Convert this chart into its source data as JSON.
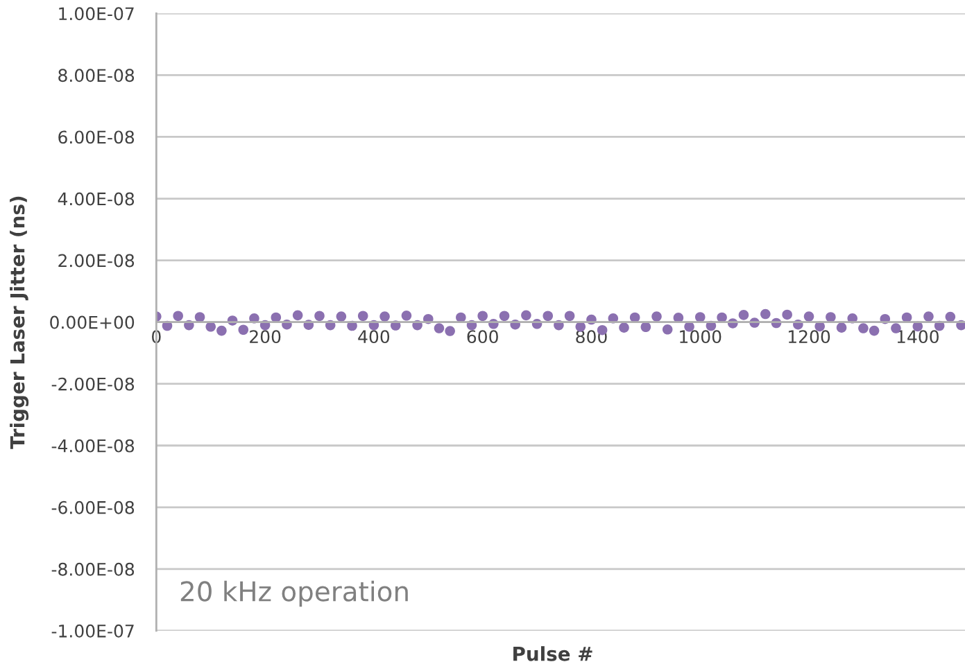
{
  "chart_data": {
    "type": "scatter",
    "xlabel": "Pulse #",
    "ylabel": "Trigger Laser Jitter (ns)",
    "annotations": [
      "20 kHz operation"
    ],
    "x": [
      0,
      20,
      40,
      60,
      80,
      100,
      120,
      140,
      160,
      180,
      200,
      220,
      240,
      260,
      280,
      300,
      320,
      340,
      360,
      380,
      400,
      420,
      440,
      460,
      480,
      500,
      520,
      540,
      560,
      580,
      600,
      620,
      640,
      660,
      680,
      700,
      720,
      740,
      760,
      780,
      800,
      820,
      840,
      860,
      880,
      900,
      920,
      940,
      960,
      980,
      1000,
      1020,
      1040,
      1060,
      1080,
      1100,
      1120,
      1140,
      1160,
      1180,
      1200,
      1220,
      1240,
      1260,
      1280,
      1300,
      1320,
      1340,
      1360,
      1380,
      1400,
      1420,
      1440,
      1460,
      1480
    ],
    "series": [
      {
        "color": "#8b70b0",
        "values": [
          1.8e-09,
          -1.2e-09,
          2e-09,
          -1e-09,
          1.6e-09,
          -1.5e-09,
          -2.8e-09,
          5e-10,
          -2.5e-09,
          1.2e-09,
          -1e-09,
          1.5e-09,
          -8e-10,
          2.2e-09,
          -9e-10,
          2e-09,
          -1e-09,
          1.8e-09,
          -1.2e-09,
          2e-09,
          -1e-09,
          1.8e-09,
          -1.1e-09,
          2.1e-09,
          -1e-09,
          1e-09,
          -2e-09,
          -2.9e-09,
          1.5e-09,
          -1e-09,
          2e-09,
          -6e-10,
          2e-09,
          -8e-10,
          2.2e-09,
          -6e-10,
          2e-09,
          -1e-09,
          2e-09,
          -1.5e-09,
          8e-10,
          -2.6e-09,
          1.2e-09,
          -1.8e-09,
          1.5e-09,
          -1.6e-09,
          1.8e-09,
          -2.4e-09,
          1.4e-09,
          -1.5e-09,
          1.6e-09,
          -1.2e-09,
          1.5e-09,
          -4e-10,
          2.3e-09,
          -2e-10,
          2.6e-09,
          -3e-10,
          2.4e-09,
          -8e-10,
          1.8e-09,
          -1.4e-09,
          1.6e-09,
          -1.8e-09,
          1.2e-09,
          -2e-09,
          -2.8e-09,
          1e-09,
          -2e-09,
          1.5e-09,
          -1.4e-09,
          1.8e-09,
          -1.2e-09,
          1.7e-09,
          -1e-09
        ]
      }
    ],
    "xlim": [
      0,
      1487
    ],
    "xticks": [
      0,
      200,
      400,
      600,
      800,
      1000,
      1200,
      1400
    ],
    "ylim": [
      -1e-07,
      1e-07
    ],
    "yticks": [
      {
        "value": 1e-07,
        "label": "1.00E-07"
      },
      {
        "value": 8e-08,
        "label": "8.00E-08"
      },
      {
        "value": 6e-08,
        "label": "6.00E-08"
      },
      {
        "value": 4e-08,
        "label": "4.00E-08"
      },
      {
        "value": 2e-08,
        "label": "2.00E-08"
      },
      {
        "value": 0,
        "label": "0.00E+00"
      },
      {
        "value": -2e-08,
        "label": "-2.00E-08"
      },
      {
        "value": -4e-08,
        "label": "-4.00E-08"
      },
      {
        "value": -6e-08,
        "label": "-6.00E-08"
      },
      {
        "value": -8e-08,
        "label": "-8.00E-08"
      },
      {
        "value": -1e-07,
        "label": "-1.00E-07"
      }
    ],
    "grid": "y",
    "marker": "circle"
  }
}
